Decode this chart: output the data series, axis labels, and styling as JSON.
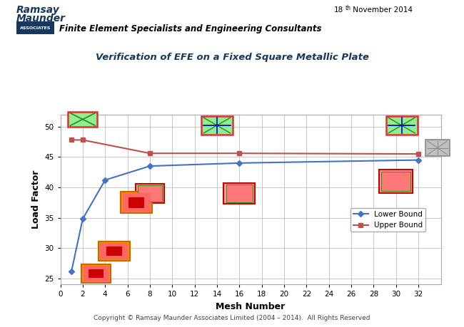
{
  "title": "Verification of EFE on a Fixed Square Metallic Plate",
  "xlabel": "Mesh Number",
  "ylabel": "Load Factor",
  "header_line1": "Ramsay",
  "header_line2": "Maunder",
  "header_italic": "Finite Element Specialists and Engineering Consultants",
  "footer": "Copyright © Ramsay Maunder Associates Limited (2004 – 2014).  All Rights Reserved",
  "lower_bound_x": [
    1,
    2,
    4,
    8,
    16,
    32
  ],
  "lower_bound_y": [
    26.2,
    34.8,
    41.2,
    43.5,
    44.0,
    44.5
  ],
  "upper_bound_x": [
    1,
    2,
    8,
    16,
    32
  ],
  "upper_bound_y": [
    47.8,
    47.8,
    45.6,
    45.6,
    45.5
  ],
  "lower_color": "#4472C4",
  "upper_color": "#C0504D",
  "bg_color": "#FFFFFF",
  "grid_color": "#BFBFBF",
  "xlim": [
    0,
    34
  ],
  "ylim": [
    24,
    52
  ],
  "xticks": [
    0,
    2,
    4,
    6,
    8,
    10,
    12,
    14,
    16,
    18,
    20,
    22,
    24,
    26,
    28,
    30,
    32
  ],
  "yticks": [
    25,
    30,
    35,
    40,
    45,
    50
  ],
  "legend_lower": "Lower Bound",
  "legend_upper": "Upper Bound",
  "title_color": "#17375E",
  "ramsay_color": "#17375E",
  "associates_bg": "#17375E"
}
